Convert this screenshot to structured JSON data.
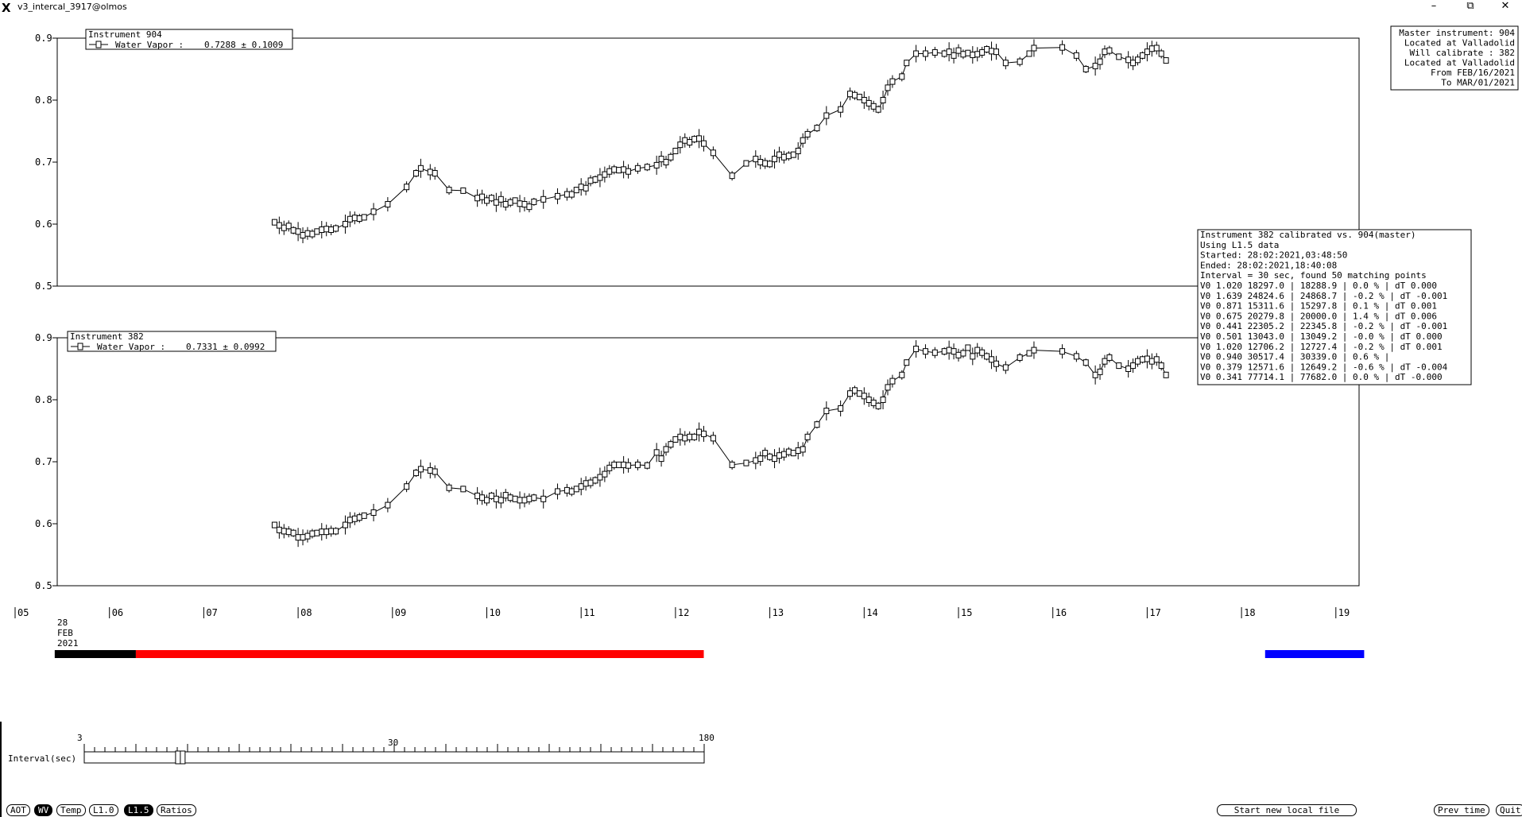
{
  "window": {
    "title": "v3_intercal_3917@olmos",
    "app_icon": "x-logo-icon",
    "minimize": "–",
    "restore": "⧉",
    "close": "✕"
  },
  "info_box": [
    "Master instrument: 904",
    "Located at Valladolid",
    "Will calibrate   : 382",
    "Located at Valladolid",
    "From FEB/16/2021",
    "To MAR/01/2021"
  ],
  "calib_box": [
    "Instrument 382 calibrated vs. 904(master)",
    "Using L1.5 data",
    "Started: 28:02:2021,03:48:50",
    "Ended: 28:02:2021,18:40:08",
    "Interval = 30 sec, found 50 matching points",
    "V0 1.020  18297.0 | 18288.9 |  0.0 % | dT 0.000",
    "V0 1.639  24824.6 | 24868.7 | -0.2 % | dT -0.001",
    "V0 0.871  15311.6 | 15297.8 |  0.1 % | dT 0.001",
    "V0 0.675  20279.8 | 20000.0 |  1.4 % | dT 0.006",
    "V0 0.441  22305.2 | 22345.8 | -0.2 % | dT -0.001",
    "V0 0.501  13043.0 | 13049.2 | -0.0 % | dT 0.000",
    "V0 1.020  12706.2 | 12727.4 | -0.2 % | dT 0.001",
    "V0 0.940  30517.4 | 30339.0 |  0.6 % |",
    "V0 0.379  12571.6 | 12649.2 | -0.6 % | dT -0.004",
    "V0 0.341  77714.1 | 77682.0 |  0.0 % | dT -0.000"
  ],
  "chart_data": [
    {
      "type": "line",
      "title": "Instrument 904",
      "legend": {
        "label": "Water Vapor :",
        "mean": "0.7288 ± 0.1009",
        "placement": "top-left"
      },
      "ylim": [
        0.5,
        0.9
      ],
      "yticks": [
        "0.9",
        "0.8",
        "0.7",
        "0.6",
        "0.5"
      ],
      "series": [
        {
          "name": "Water Vapor",
          "x": [
            7.75,
            7.8,
            7.85,
            7.9,
            7.95,
            8.0,
            8.05,
            8.1,
            8.15,
            8.2,
            8.25,
            8.3,
            8.35,
            8.4,
            8.5,
            8.55,
            8.6,
            8.65,
            8.7,
            8.8,
            8.95,
            9.15,
            9.25,
            9.3,
            9.4,
            9.45,
            9.6,
            9.75,
            9.9,
            9.95,
            10.0,
            10.05,
            10.1,
            10.15,
            10.2,
            10.25,
            10.3,
            10.35,
            10.4,
            10.45,
            10.5,
            10.6,
            10.75,
            10.85,
            10.9,
            10.95,
            11.0,
            11.05,
            11.1,
            11.15,
            11.2,
            11.25,
            11.3,
            11.35,
            11.4,
            11.45,
            11.5,
            11.6,
            11.7,
            11.8,
            11.85,
            11.9,
            11.95,
            12.0,
            12.05,
            12.1,
            12.15,
            12.2,
            12.25,
            12.3,
            12.4,
            12.6,
            12.75,
            12.85,
            12.9,
            12.95,
            13.0,
            13.05,
            13.1,
            13.15,
            13.2,
            13.25,
            13.3,
            13.35,
            13.4,
            13.5,
            13.6,
            13.75,
            13.85,
            13.9,
            13.95,
            14.0,
            14.05,
            14.1,
            14.15,
            14.2,
            14.25,
            14.3,
            14.4,
            14.45,
            14.55,
            14.65,
            14.75,
            14.85,
            14.9,
            14.95,
            15.0,
            15.05,
            15.1,
            15.15,
            15.2,
            15.25,
            15.3,
            15.35,
            15.4,
            15.5,
            15.65,
            15.75,
            15.8,
            16.1,
            16.25,
            16.35,
            16.45,
            16.5,
            16.55,
            16.6,
            16.7,
            16.8,
            16.85,
            16.9,
            16.95,
            17.0,
            17.05,
            17.1,
            17.15,
            17.2
          ],
          "values": [
            0.603,
            0.598,
            0.594,
            0.597,
            0.59,
            0.588,
            0.582,
            0.585,
            0.584,
            0.588,
            0.591,
            0.592,
            0.591,
            0.593,
            0.6,
            0.608,
            0.61,
            0.609,
            0.611,
            0.62,
            0.632,
            0.66,
            0.682,
            0.69,
            0.684,
            0.682,
            0.655,
            0.654,
            0.642,
            0.644,
            0.638,
            0.642,
            0.635,
            0.64,
            0.632,
            0.635,
            0.638,
            0.633,
            0.632,
            0.628,
            0.636,
            0.64,
            0.645,
            0.648,
            0.648,
            0.655,
            0.66,
            0.658,
            0.67,
            0.672,
            0.675,
            0.68,
            0.685,
            0.688,
            0.687,
            0.688,
            0.685,
            0.69,
            0.692,
            0.695,
            0.705,
            0.7,
            0.708,
            0.718,
            0.728,
            0.735,
            0.732,
            0.737,
            0.738,
            0.73,
            0.715,
            0.678,
            0.698,
            0.705,
            0.7,
            0.698,
            0.697,
            0.705,
            0.712,
            0.708,
            0.71,
            0.712,
            0.718,
            0.735,
            0.745,
            0.755,
            0.775,
            0.785,
            0.81,
            0.808,
            0.805,
            0.8,
            0.795,
            0.79,
            0.785,
            0.8,
            0.82,
            0.83,
            0.838,
            0.86,
            0.875,
            0.875,
            0.877,
            0.875,
            0.878,
            0.872,
            0.88,
            0.874,
            0.876,
            0.873,
            0.874,
            0.877,
            0.882,
            0.879,
            0.878,
            0.86,
            0.862,
            0.875,
            0.884,
            0.885,
            0.872,
            0.85,
            0.855,
            0.862,
            0.878,
            0.88,
            0.87,
            0.865,
            0.86,
            0.865,
            0.872,
            0.878,
            0.883,
            0.884,
            0.875,
            0.864
          ]
        }
      ]
    },
    {
      "type": "line",
      "title": "Instrument 382",
      "legend": {
        "label": "Water Vapor :",
        "mean": "0.7331 ± 0.0992",
        "placement": "top-left"
      },
      "ylim": [
        0.5,
        0.9
      ],
      "yticks": [
        "0.9",
        "0.8",
        "0.7",
        "0.6",
        "0.5"
      ],
      "series": [
        {
          "name": "Water Vapor",
          "x": [
            7.75,
            7.8,
            7.85,
            7.9,
            7.95,
            8.0,
            8.05,
            8.1,
            8.15,
            8.2,
            8.25,
            8.3,
            8.35,
            8.4,
            8.5,
            8.55,
            8.6,
            8.65,
            8.7,
            8.8,
            8.95,
            9.15,
            9.25,
            9.3,
            9.4,
            9.45,
            9.6,
            9.75,
            9.9,
            9.95,
            10.0,
            10.05,
            10.1,
            10.15,
            10.2,
            10.25,
            10.3,
            10.35,
            10.4,
            10.45,
            10.5,
            10.6,
            10.75,
            10.85,
            10.9,
            10.95,
            11.0,
            11.05,
            11.1,
            11.15,
            11.2,
            11.25,
            11.3,
            11.35,
            11.4,
            11.45,
            11.5,
            11.6,
            11.7,
            11.8,
            11.85,
            11.9,
            11.95,
            12.0,
            12.05,
            12.1,
            12.15,
            12.2,
            12.25,
            12.3,
            12.4,
            12.6,
            12.75,
            12.85,
            12.9,
            12.95,
            13.0,
            13.05,
            13.1,
            13.15,
            13.2,
            13.25,
            13.3,
            13.35,
            13.4,
            13.5,
            13.6,
            13.75,
            13.85,
            13.9,
            13.95,
            14.0,
            14.05,
            14.1,
            14.15,
            14.2,
            14.25,
            14.3,
            14.4,
            14.45,
            14.55,
            14.65,
            14.75,
            14.85,
            14.9,
            14.95,
            15.0,
            15.05,
            15.1,
            15.15,
            15.2,
            15.25,
            15.3,
            15.35,
            15.4,
            15.5,
            15.65,
            15.75,
            15.8,
            16.1,
            16.25,
            16.35,
            16.45,
            16.5,
            16.55,
            16.6,
            16.7,
            16.8,
            16.85,
            16.9,
            16.95,
            17.0,
            17.05,
            17.1,
            17.15,
            17.2
          ],
          "values": [
            0.598,
            0.59,
            0.588,
            0.587,
            0.585,
            0.578,
            0.578,
            0.58,
            0.584,
            0.585,
            0.587,
            0.587,
            0.588,
            0.588,
            0.598,
            0.606,
            0.608,
            0.61,
            0.613,
            0.618,
            0.63,
            0.66,
            0.682,
            0.688,
            0.686,
            0.684,
            0.658,
            0.656,
            0.645,
            0.642,
            0.638,
            0.645,
            0.64,
            0.638,
            0.646,
            0.642,
            0.64,
            0.638,
            0.638,
            0.64,
            0.642,
            0.64,
            0.652,
            0.654,
            0.652,
            0.656,
            0.66,
            0.665,
            0.666,
            0.67,
            0.675,
            0.68,
            0.69,
            0.695,
            0.695,
            0.695,
            0.694,
            0.695,
            0.694,
            0.715,
            0.705,
            0.72,
            0.728,
            0.736,
            0.74,
            0.738,
            0.74,
            0.74,
            0.748,
            0.745,
            0.738,
            0.695,
            0.698,
            0.702,
            0.705,
            0.714,
            0.708,
            0.705,
            0.71,
            0.712,
            0.716,
            0.714,
            0.718,
            0.72,
            0.74,
            0.76,
            0.782,
            0.786,
            0.81,
            0.815,
            0.81,
            0.806,
            0.8,
            0.795,
            0.79,
            0.8,
            0.82,
            0.83,
            0.84,
            0.86,
            0.882,
            0.878,
            0.876,
            0.878,
            0.88,
            0.878,
            0.872,
            0.875,
            0.884,
            0.87,
            0.88,
            0.876,
            0.87,
            0.865,
            0.858,
            0.852,
            0.868,
            0.875,
            0.88,
            0.878,
            0.87,
            0.86,
            0.84,
            0.845,
            0.862,
            0.868,
            0.855,
            0.85,
            0.855,
            0.862,
            0.865,
            0.866,
            0.862,
            0.865,
            0.855,
            0.84
          ]
        }
      ]
    }
  ],
  "time_axis": {
    "ticks": [
      "05",
      "06",
      "07",
      "08",
      "09",
      "10",
      "11",
      "12",
      "13",
      "14",
      "15",
      "16",
      "17",
      "18",
      "19"
    ],
    "date_day": "28",
    "date_month": "FEB",
    "date_year": "2021"
  },
  "time_bars": [
    {
      "color": "#000000",
      "from": 5.42,
      "to": 6.28
    },
    {
      "color": "#ff0000",
      "from": 6.28,
      "to": 12.3
    },
    {
      "color": "#0000ff",
      "from": 18.25,
      "to": 19.3
    }
  ],
  "interval_slider": {
    "label": "Interval(sec)",
    "min_label": "3",
    "mid_label": "30",
    "max_label": "180",
    "position_fraction": 0.155
  },
  "buttons": {
    "aot": "AOT",
    "wv": "WV",
    "temp": "Temp",
    "l10": "L1.0",
    "l15": "L1.5",
    "ratios": "Ratios",
    "start_new": "Start new local file",
    "prev_time": "Prev time",
    "quit": "Quit"
  }
}
